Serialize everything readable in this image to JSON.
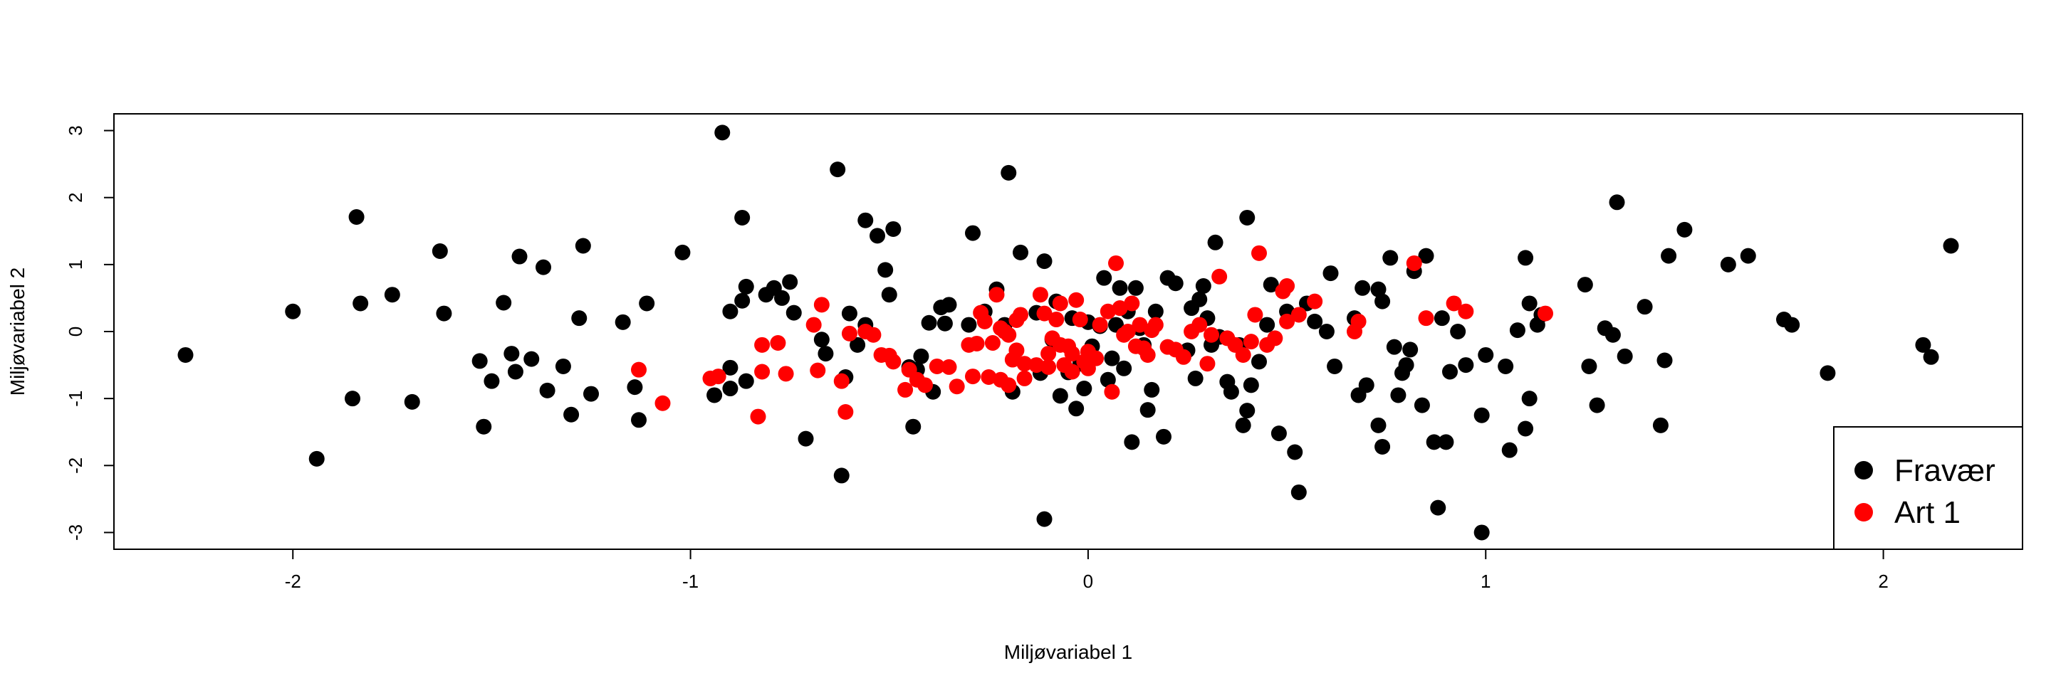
{
  "chart_data": {
    "type": "scatter",
    "title": "",
    "xlabel": "Miljøvariabel 1",
    "ylabel": "Miljøvariabel 2",
    "xlim": [
      -2.45,
      2.35
    ],
    "ylim": [
      -3.25,
      3.25
    ],
    "xticks": [
      -2,
      -1,
      0,
      1,
      2
    ],
    "yticks": [
      -3,
      -2,
      -1,
      0,
      1,
      2,
      3
    ],
    "grid": false,
    "legend_position": "bottom-right",
    "series": [
      {
        "name": "Fravær",
        "color": "#000000",
        "points": [
          [
            -2.27,
            -0.35
          ],
          [
            -2.0,
            0.3
          ],
          [
            -1.94,
            -1.9
          ],
          [
            -1.85,
            -1.0
          ],
          [
            -1.84,
            1.71
          ],
          [
            -1.83,
            0.42
          ],
          [
            -1.75,
            0.55
          ],
          [
            -1.7,
            -1.05
          ],
          [
            -1.63,
            1.2
          ],
          [
            -1.62,
            0.27
          ],
          [
            -1.53,
            -0.44
          ],
          [
            -1.52,
            -1.42
          ],
          [
            -1.5,
            -0.74
          ],
          [
            -1.47,
            0.43
          ],
          [
            -1.45,
            -0.33
          ],
          [
            -1.44,
            -0.6
          ],
          [
            -1.43,
            1.12
          ],
          [
            -1.4,
            -0.41
          ],
          [
            -1.37,
            0.96
          ],
          [
            -1.36,
            -0.88
          ],
          [
            -1.32,
            -0.52
          ],
          [
            -1.3,
            -1.24
          ],
          [
            -1.28,
            0.2
          ],
          [
            -1.27,
            1.28
          ],
          [
            -1.25,
            -0.93
          ],
          [
            -1.17,
            0.14
          ],
          [
            -1.14,
            -0.83
          ],
          [
            -1.13,
            -1.32
          ],
          [
            -1.11,
            0.42
          ],
          [
            -1.02,
            1.18
          ],
          [
            -0.94,
            -0.95
          ],
          [
            -0.92,
            2.97
          ],
          [
            -0.9,
            -0.85
          ],
          [
            -0.9,
            -0.54
          ],
          [
            -0.9,
            0.3
          ],
          [
            -0.87,
            1.7
          ],
          [
            -0.87,
            0.46
          ],
          [
            -0.86,
            0.67
          ],
          [
            -0.86,
            -0.74
          ],
          [
            -0.81,
            0.55
          ],
          [
            -0.79,
            0.65
          ],
          [
            -0.77,
            0.5
          ],
          [
            -0.75,
            0.74
          ],
          [
            -0.74,
            0.28
          ],
          [
            -0.71,
            -1.6
          ],
          [
            -0.67,
            -0.12
          ],
          [
            -0.66,
            -0.33
          ],
          [
            -0.63,
            2.42
          ],
          [
            -0.62,
            -2.15
          ],
          [
            -0.61,
            -0.68
          ],
          [
            -0.6,
            0.27
          ],
          [
            -0.58,
            -0.2
          ],
          [
            -0.56,
            0.1
          ],
          [
            -0.56,
            1.66
          ],
          [
            -0.53,
            1.43
          ],
          [
            -0.51,
            0.92
          ],
          [
            -0.5,
            0.55
          ],
          [
            -0.49,
            1.53
          ],
          [
            -0.45,
            -0.53
          ],
          [
            -0.44,
            -1.42
          ],
          [
            -0.43,
            -0.57
          ],
          [
            -0.42,
            -0.37
          ],
          [
            -0.4,
            0.13
          ],
          [
            -0.39,
            -0.9
          ],
          [
            -0.37,
            0.36
          ],
          [
            -0.36,
            0.12
          ],
          [
            -0.35,
            0.4
          ],
          [
            -0.3,
            0.1
          ],
          [
            -0.29,
            1.47
          ],
          [
            -0.26,
            0.3
          ],
          [
            -0.23,
            0.63
          ],
          [
            -0.21,
            0.1
          ],
          [
            -0.2,
            2.37
          ],
          [
            -0.19,
            -0.9
          ],
          [
            -0.17,
            1.18
          ],
          [
            -0.13,
            0.28
          ],
          [
            -0.12,
            -0.62
          ],
          [
            -0.11,
            -2.8
          ],
          [
            -0.11,
            1.05
          ],
          [
            -0.09,
            -0.12
          ],
          [
            -0.08,
            0.45
          ],
          [
            -0.07,
            -0.96
          ],
          [
            -0.05,
            -0.61
          ],
          [
            -0.04,
            0.2
          ],
          [
            -0.03,
            -1.15
          ],
          [
            -0.02,
            -0.48
          ],
          [
            -0.01,
            -0.85
          ],
          [
            0.0,
            0.14
          ],
          [
            0.01,
            -0.22
          ],
          [
            0.03,
            0.08
          ],
          [
            0.04,
            0.8
          ],
          [
            0.05,
            -0.72
          ],
          [
            0.06,
            -0.4
          ],
          [
            0.07,
            0.1
          ],
          [
            0.08,
            0.65
          ],
          [
            0.09,
            -0.55
          ],
          [
            0.1,
            0.3
          ],
          [
            0.11,
            -1.65
          ],
          [
            0.12,
            0.65
          ],
          [
            0.13,
            0.05
          ],
          [
            0.14,
            -0.2
          ],
          [
            0.15,
            -1.17
          ],
          [
            0.16,
            -0.87
          ],
          [
            0.17,
            0.3
          ],
          [
            0.19,
            -1.57
          ],
          [
            0.2,
            0.8
          ],
          [
            0.22,
            0.72
          ],
          [
            0.25,
            -0.28
          ],
          [
            0.26,
            0.35
          ],
          [
            0.27,
            -0.7
          ],
          [
            0.28,
            0.48
          ],
          [
            0.29,
            0.68
          ],
          [
            0.3,
            0.2
          ],
          [
            0.31,
            -0.2
          ],
          [
            0.32,
            1.33
          ],
          [
            0.33,
            -0.08
          ],
          [
            0.35,
            -0.75
          ],
          [
            0.36,
            -0.9
          ],
          [
            0.38,
            -0.2
          ],
          [
            0.39,
            -1.4
          ],
          [
            0.4,
            1.7
          ],
          [
            0.4,
            -1.18
          ],
          [
            0.41,
            -0.8
          ],
          [
            0.43,
            -0.45
          ],
          [
            0.45,
            0.1
          ],
          [
            0.46,
            0.7
          ],
          [
            0.48,
            -1.52
          ],
          [
            0.5,
            0.3
          ],
          [
            0.52,
            -1.8
          ],
          [
            0.53,
            -2.4
          ],
          [
            0.55,
            0.42
          ],
          [
            0.57,
            0.15
          ],
          [
            0.6,
            0.0
          ],
          [
            0.61,
            0.87
          ],
          [
            0.62,
            -0.52
          ],
          [
            0.67,
            0.2
          ],
          [
            0.68,
            -0.95
          ],
          [
            0.69,
            0.65
          ],
          [
            0.7,
            -0.8
          ],
          [
            0.73,
            -1.4
          ],
          [
            0.73,
            0.63
          ],
          [
            0.74,
            -1.72
          ],
          [
            0.74,
            0.45
          ],
          [
            0.76,
            1.1
          ],
          [
            0.77,
            -0.23
          ],
          [
            0.78,
            -0.95
          ],
          [
            0.79,
            -0.62
          ],
          [
            0.8,
            -0.5
          ],
          [
            0.81,
            -0.27
          ],
          [
            0.82,
            0.9
          ],
          [
            0.84,
            -1.1
          ],
          [
            0.85,
            1.13
          ],
          [
            0.87,
            -1.65
          ],
          [
            0.88,
            -2.63
          ],
          [
            0.89,
            0.2
          ],
          [
            0.9,
            -1.65
          ],
          [
            0.91,
            -0.6
          ],
          [
            0.93,
            0.0
          ],
          [
            0.95,
            -0.5
          ],
          [
            0.99,
            -3.0
          ],
          [
            0.99,
            -1.25
          ],
          [
            1.0,
            -0.35
          ],
          [
            1.05,
            -0.52
          ],
          [
            1.06,
            -1.77
          ],
          [
            1.08,
            0.02
          ],
          [
            1.1,
            -1.45
          ],
          [
            1.1,
            1.1
          ],
          [
            1.11,
            0.42
          ],
          [
            1.11,
            -1.0
          ],
          [
            1.13,
            0.1
          ],
          [
            1.14,
            0.25
          ],
          [
            1.25,
            0.7
          ],
          [
            1.26,
            -0.52
          ],
          [
            1.28,
            -1.1
          ],
          [
            1.3,
            0.05
          ],
          [
            1.32,
            -0.05
          ],
          [
            1.33,
            1.93
          ],
          [
            1.35,
            -0.37
          ],
          [
            1.4,
            0.37
          ],
          [
            1.44,
            -1.4
          ],
          [
            1.45,
            -0.43
          ],
          [
            1.46,
            1.13
          ],
          [
            1.5,
            1.52
          ],
          [
            1.61,
            1.0
          ],
          [
            1.66,
            1.13
          ],
          [
            1.75,
            0.18
          ],
          [
            1.77,
            0.1
          ],
          [
            1.86,
            -0.62
          ],
          [
            2.1,
            -0.2
          ],
          [
            2.12,
            -0.38
          ],
          [
            2.17,
            1.28
          ]
        ]
      },
      {
        "name": "Art 1",
        "color": "#ff0000",
        "points": [
          [
            -1.13,
            -0.57
          ],
          [
            -1.07,
            -1.07
          ],
          [
            -0.95,
            -0.7
          ],
          [
            -0.93,
            -0.67
          ],
          [
            -0.83,
            -1.27
          ],
          [
            -0.82,
            -0.2
          ],
          [
            -0.82,
            -0.6
          ],
          [
            -0.78,
            -0.17
          ],
          [
            -0.76,
            -0.63
          ],
          [
            -0.69,
            0.1
          ],
          [
            -0.68,
            -0.58
          ],
          [
            -0.67,
            0.4
          ],
          [
            -0.62,
            -0.74
          ],
          [
            -0.61,
            -1.2
          ],
          [
            -0.6,
            -0.03
          ],
          [
            -0.56,
            0.0
          ],
          [
            -0.54,
            -0.05
          ],
          [
            -0.52,
            -0.35
          ],
          [
            -0.5,
            -0.36
          ],
          [
            -0.49,
            -0.45
          ],
          [
            -0.46,
            -0.87
          ],
          [
            -0.45,
            -0.57
          ],
          [
            -0.43,
            -0.72
          ],
          [
            -0.41,
            -0.8
          ],
          [
            -0.38,
            -0.52
          ],
          [
            -0.35,
            -0.53
          ],
          [
            -0.33,
            -0.82
          ],
          [
            -0.3,
            -0.2
          ],
          [
            -0.29,
            -0.67
          ],
          [
            -0.28,
            -0.18
          ],
          [
            -0.27,
            0.28
          ],
          [
            -0.26,
            0.15
          ],
          [
            -0.25,
            -0.68
          ],
          [
            -0.24,
            -0.17
          ],
          [
            -0.23,
            0.55
          ],
          [
            -0.22,
            -0.72
          ],
          [
            -0.22,
            0.05
          ],
          [
            -0.21,
            0.0
          ],
          [
            -0.2,
            -0.8
          ],
          [
            -0.2,
            -0.05
          ],
          [
            -0.19,
            -0.42
          ],
          [
            -0.18,
            0.17
          ],
          [
            -0.18,
            -0.28
          ],
          [
            -0.17,
            0.25
          ],
          [
            -0.16,
            -0.7
          ],
          [
            -0.16,
            -0.48
          ],
          [
            -0.13,
            -0.5
          ],
          [
            -0.12,
            0.55
          ],
          [
            -0.11,
            0.27
          ],
          [
            -0.1,
            -0.33
          ],
          [
            -0.1,
            -0.53
          ],
          [
            -0.09,
            -0.1
          ],
          [
            -0.08,
            0.18
          ],
          [
            -0.07,
            -0.2
          ],
          [
            -0.07,
            0.42
          ],
          [
            -0.06,
            -0.5
          ],
          [
            -0.05,
            -0.22
          ],
          [
            -0.04,
            -0.6
          ],
          [
            -0.04,
            -0.33
          ],
          [
            -0.03,
            0.47
          ],
          [
            -0.02,
            0.18
          ],
          [
            -0.01,
            -0.45
          ],
          [
            0.0,
            -0.3
          ],
          [
            0.0,
            -0.55
          ],
          [
            0.02,
            -0.4
          ],
          [
            0.03,
            0.1
          ],
          [
            0.05,
            0.3
          ],
          [
            0.06,
            -0.9
          ],
          [
            0.07,
            1.02
          ],
          [
            0.08,
            0.35
          ],
          [
            0.09,
            -0.05
          ],
          [
            0.1,
            0.0
          ],
          [
            0.11,
            0.42
          ],
          [
            0.12,
            -0.22
          ],
          [
            0.13,
            0.1
          ],
          [
            0.14,
            -0.25
          ],
          [
            0.15,
            -0.35
          ],
          [
            0.16,
            0.02
          ],
          [
            0.17,
            0.1
          ],
          [
            0.2,
            -0.23
          ],
          [
            0.22,
            -0.27
          ],
          [
            0.24,
            -0.38
          ],
          [
            0.26,
            0.0
          ],
          [
            0.28,
            0.1
          ],
          [
            0.3,
            -0.48
          ],
          [
            0.31,
            -0.05
          ],
          [
            0.33,
            0.82
          ],
          [
            0.35,
            -0.1
          ],
          [
            0.37,
            -0.2
          ],
          [
            0.39,
            -0.35
          ],
          [
            0.41,
            -0.15
          ],
          [
            0.42,
            0.25
          ],
          [
            0.43,
            1.17
          ],
          [
            0.45,
            -0.2
          ],
          [
            0.47,
            -0.1
          ],
          [
            0.49,
            0.6
          ],
          [
            0.5,
            0.68
          ],
          [
            0.5,
            0.15
          ],
          [
            0.53,
            0.25
          ],
          [
            0.57,
            0.45
          ],
          [
            0.67,
            0.0
          ],
          [
            0.68,
            0.15
          ],
          [
            0.82,
            1.02
          ],
          [
            0.85,
            0.2
          ],
          [
            0.92,
            0.42
          ],
          [
            0.95,
            0.3
          ],
          [
            1.15,
            0.27
          ]
        ]
      }
    ]
  }
}
